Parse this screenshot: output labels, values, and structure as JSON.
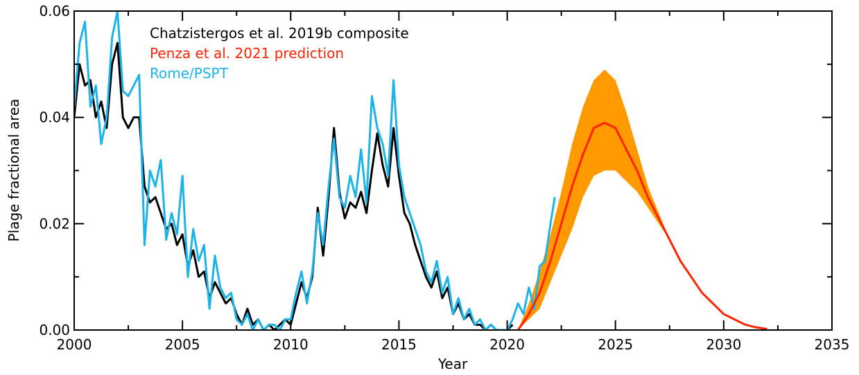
{
  "chart_data": {
    "type": "line",
    "x_label": "Year",
    "y_label": "Plage fractional area",
    "xlim": [
      2000,
      2035
    ],
    "xticks": [
      2000,
      2005,
      2010,
      2015,
      2020,
      2025,
      2030,
      2035
    ],
    "ylim": [
      0,
      0.06
    ],
    "yticks": [
      {
        "value": 0,
        "label": "0.00"
      },
      {
        "value": 0.02,
        "label": "0.02"
      },
      {
        "value": 0.04,
        "label": "0.04"
      },
      {
        "value": 0.06,
        "label": "0.06"
      }
    ],
    "legend": "upper left",
    "band": {
      "color": "#ff9900",
      "x": [
        2020.5,
        2021,
        2021.5,
        2022,
        2022.5,
        2023,
        2023.5,
        2024,
        2024.5,
        2025,
        2025.5,
        2026,
        2026.5,
        2027,
        2027.5,
        2028,
        2028.5,
        2029,
        2029.5,
        2030,
        2030.5,
        2031,
        2031.5,
        2032
      ],
      "lower": [
        0,
        0.002,
        0.004,
        0.009,
        0.014,
        0.019,
        0.025,
        0.029,
        0.03,
        0.03,
        0.028,
        0.026,
        0.023,
        0.02,
        0.017,
        0.013,
        0.01,
        0.007,
        0.005,
        0.003,
        0.002,
        0.001,
        0.0005,
        0.0002
      ],
      "upper": [
        0,
        0.005,
        0.011,
        0.018,
        0.026,
        0.035,
        0.042,
        0.047,
        0.049,
        0.047,
        0.041,
        0.034,
        0.027,
        0.022,
        0.017,
        0.013,
        0.01,
        0.007,
        0.005,
        0.003,
        0.002,
        0.001,
        0.0005,
        0.0002
      ]
    },
    "series": [
      {
        "name": "Chatzistergos et al. 2019b composite",
        "color": "#000000",
        "x": [
          2000,
          2000.25,
          2000.5,
          2000.75,
          2001,
          2001.25,
          2001.5,
          2001.75,
          2002,
          2002.25,
          2002.5,
          2002.75,
          2003,
          2003.25,
          2003.5,
          2003.75,
          2004,
          2004.25,
          2004.5,
          2004.75,
          2005,
          2005.25,
          2005.5,
          2005.75,
          2006,
          2006.25,
          2006.5,
          2006.75,
          2007,
          2007.25,
          2007.5,
          2007.75,
          2008,
          2008.25,
          2008.5,
          2008.75,
          2009,
          2009.25,
          2009.5,
          2009.75,
          2010,
          2010.25,
          2010.5,
          2010.75,
          2011,
          2011.25,
          2011.5,
          2011.75,
          2012,
          2012.25,
          2012.5,
          2012.75,
          2013,
          2013.25,
          2013.5,
          2013.75,
          2014,
          2014.25,
          2014.5,
          2014.75,
          2015,
          2015.25,
          2015.5,
          2015.75,
          2016,
          2016.25,
          2016.5,
          2016.75,
          2017,
          2017.25,
          2017.5,
          2017.75,
          2018,
          2018.25,
          2018.5,
          2018.75,
          2019,
          2019.25,
          2019.5,
          2019.75,
          2020,
          2020.25
        ],
        "values": [
          0.04,
          0.05,
          0.046,
          0.047,
          0.04,
          0.043,
          0.038,
          0.05,
          0.054,
          0.04,
          0.038,
          0.04,
          0.04,
          0.027,
          0.024,
          0.025,
          0.022,
          0.019,
          0.02,
          0.016,
          0.018,
          0.012,
          0.015,
          0.01,
          0.011,
          0.006,
          0.009,
          0.007,
          0.005,
          0.006,
          0.003,
          0.001,
          0.004,
          0.001,
          0.002,
          0,
          0.001,
          0,
          0.001,
          0.002,
          0.001,
          0.005,
          0.009,
          0.006,
          0.01,
          0.023,
          0.014,
          0.025,
          0.038,
          0.026,
          0.021,
          0.024,
          0.023,
          0.026,
          0.022,
          0.03,
          0.037,
          0.031,
          0.027,
          0.038,
          0.029,
          0.022,
          0.02,
          0.016,
          0.013,
          0.01,
          0.008,
          0.011,
          0.006,
          0.008,
          0.003,
          0.005,
          0.002,
          0.003,
          0.001,
          0.001,
          0,
          0.001,
          0,
          0,
          0,
          0.001
        ]
      },
      {
        "name": "Penza et al. 2021 prediction",
        "color": "#ff2200",
        "x": [
          2020.5,
          2021,
          2021.5,
          2022,
          2022.5,
          2023,
          2023.5,
          2024,
          2024.5,
          2025,
          2025.5,
          2026,
          2026.5,
          2027,
          2027.5,
          2028,
          2028.5,
          2029,
          2029.5,
          2030,
          2030.5,
          2031,
          2031.5,
          2032
        ],
        "values": [
          0,
          0.003,
          0.007,
          0.013,
          0.02,
          0.027,
          0.033,
          0.038,
          0.039,
          0.038,
          0.034,
          0.03,
          0.025,
          0.021,
          0.017,
          0.013,
          0.01,
          0.007,
          0.005,
          0.003,
          0.002,
          0.001,
          0.0005,
          0.0002
        ]
      },
      {
        "name": "Rome/PSPT",
        "color": "#1cb4e8",
        "x": [
          2000,
          2000.25,
          2000.5,
          2000.75,
          2001,
          2001.25,
          2001.5,
          2001.75,
          2002,
          2002.25,
          2002.5,
          2002.75,
          2003,
          2003.25,
          2003.5,
          2003.75,
          2004,
          2004.25,
          2004.5,
          2004.75,
          2005,
          2005.25,
          2005.5,
          2005.75,
          2006,
          2006.25,
          2006.5,
          2006.75,
          2007,
          2007.25,
          2007.5,
          2007.75,
          2008,
          2008.25,
          2008.5,
          2008.75,
          2009,
          2009.25,
          2009.5,
          2009.75,
          2010,
          2010.25,
          2010.5,
          2010.75,
          2011,
          2011.25,
          2011.5,
          2011.75,
          2012,
          2012.25,
          2012.5,
          2012.75,
          2013,
          2013.25,
          2013.5,
          2013.75,
          2014,
          2014.25,
          2014.5,
          2014.75,
          2015,
          2015.25,
          2015.5,
          2015.75,
          2016,
          2016.25,
          2016.5,
          2016.75,
          2017,
          2017.25,
          2017.5,
          2017.75,
          2018,
          2018.25,
          2018.5,
          2018.75,
          2019,
          2019.25,
          2019.5,
          2019.75,
          2020,
          2020.25,
          2020.5,
          2020.75,
          2021,
          2021.25,
          2021.5,
          2021.75,
          2022,
          2022.2
        ],
        "values": [
          0.042,
          0.054,
          0.058,
          0.042,
          0.046,
          0.035,
          0.04,
          0.055,
          0.06,
          0.045,
          0.044,
          0.046,
          0.048,
          0.016,
          0.03,
          0.027,
          0.032,
          0.017,
          0.022,
          0.018,
          0.029,
          0.01,
          0.019,
          0.013,
          0.016,
          0.004,
          0.014,
          0.008,
          0.006,
          0.007,
          0.002,
          0.001,
          0.003,
          0,
          0.002,
          0,
          0.001,
          0.001,
          0,
          0.002,
          0.002,
          0.007,
          0.011,
          0.005,
          0.011,
          0.022,
          0.016,
          0.027,
          0.036,
          0.025,
          0.023,
          0.029,
          0.025,
          0.034,
          0.024,
          0.044,
          0.038,
          0.035,
          0.029,
          0.047,
          0.031,
          0.025,
          0.022,
          0.019,
          0.016,
          0.011,
          0.009,
          0.013,
          0.007,
          0.01,
          0.003,
          0.006,
          0.002,
          0.004,
          0.001,
          0.002,
          0,
          0.001,
          0,
          0,
          0,
          0.002,
          0.005,
          0.003,
          0.008,
          0.004,
          0.012,
          0.013,
          0.02,
          0.025
        ]
      }
    ]
  }
}
